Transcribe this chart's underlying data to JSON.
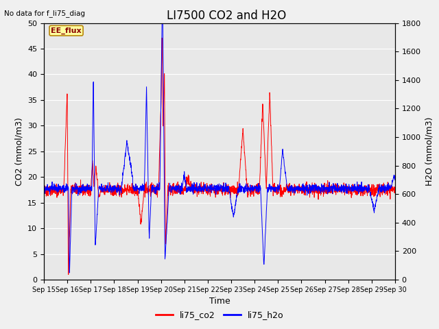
{
  "title": "LI7500 CO2 and H2O",
  "top_left_text": "No data for f_li75_diag",
  "box_label": "EE_flux",
  "xlabel": "Time",
  "ylabel_left": "CO2 (mmol/m3)",
  "ylabel_right": "H2O (mmol/m3)",
  "ylim_left": [
    0,
    50
  ],
  "ylim_right": [
    0,
    1800
  ],
  "yticks_left": [
    0,
    5,
    10,
    15,
    20,
    25,
    30,
    35,
    40,
    45,
    50
  ],
  "yticks_right": [
    0,
    200,
    400,
    600,
    800,
    1000,
    1200,
    1400,
    1600,
    1800
  ],
  "xtick_labels": [
    "Sep 15",
    "Sep 16",
    "Sep 17",
    "Sep 18",
    "Sep 19",
    "Sep 20",
    "Sep 21",
    "Sep 22",
    "Sep 23",
    "Sep 24",
    "Sep 25",
    "Sep 26",
    "Sep 27",
    "Sep 28",
    "Sep 29",
    "Sep 30"
  ],
  "co2_color": "#FF0000",
  "h2o_color": "#0000FF",
  "plot_bg_color": "#E8E8E8",
  "fig_bg_color": "#F0F0F0",
  "legend_label_co2": "li75_co2",
  "legend_label_h2o": "li75_h2o",
  "title_fontsize": 12,
  "axis_fontsize": 9,
  "tick_fontsize": 8,
  "legend_fontsize": 9
}
